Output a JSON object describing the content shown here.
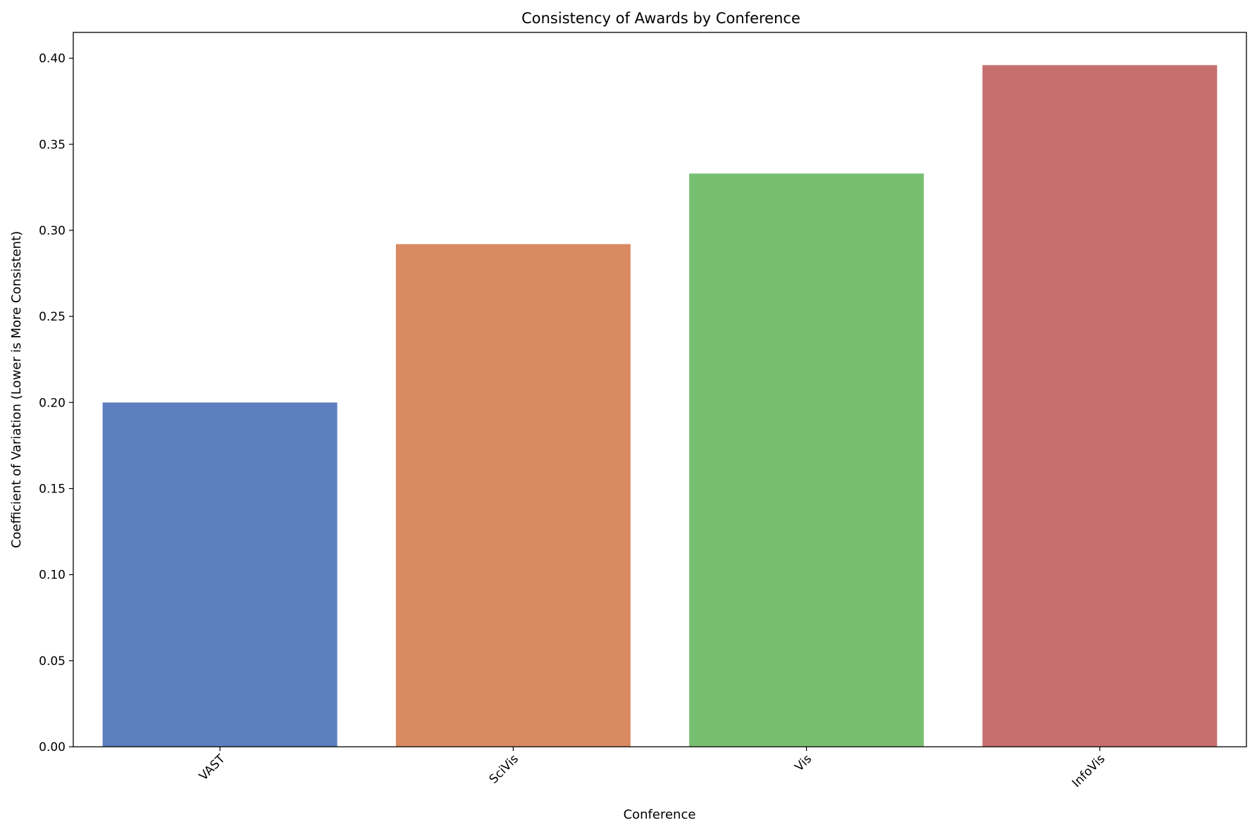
{
  "chart_data": {
    "type": "bar",
    "title": "Consistency of Awards by Conference",
    "xlabel": "Conference",
    "ylabel": "Coefficient of Variation (Lower is More Consistent)",
    "categories": [
      "VAST",
      "SciVis",
      "Vis",
      "InfoVis"
    ],
    "values": [
      0.2,
      0.292,
      0.333,
      0.396
    ],
    "colors": [
      "#5d7fc0",
      "#d98a60",
      "#77bf70",
      "#c76e6e"
    ],
    "ylim": [
      0,
      0.415
    ],
    "yticks": [
      0.0,
      0.05,
      0.1,
      0.15,
      0.2,
      0.25,
      0.3,
      0.35,
      0.4
    ],
    "ytick_labels": [
      "0.00",
      "0.05",
      "0.10",
      "0.15",
      "0.20",
      "0.25",
      "0.30",
      "0.35",
      "0.40"
    ],
    "xtick_rotation": 45,
    "grid": false,
    "legend": "none"
  }
}
